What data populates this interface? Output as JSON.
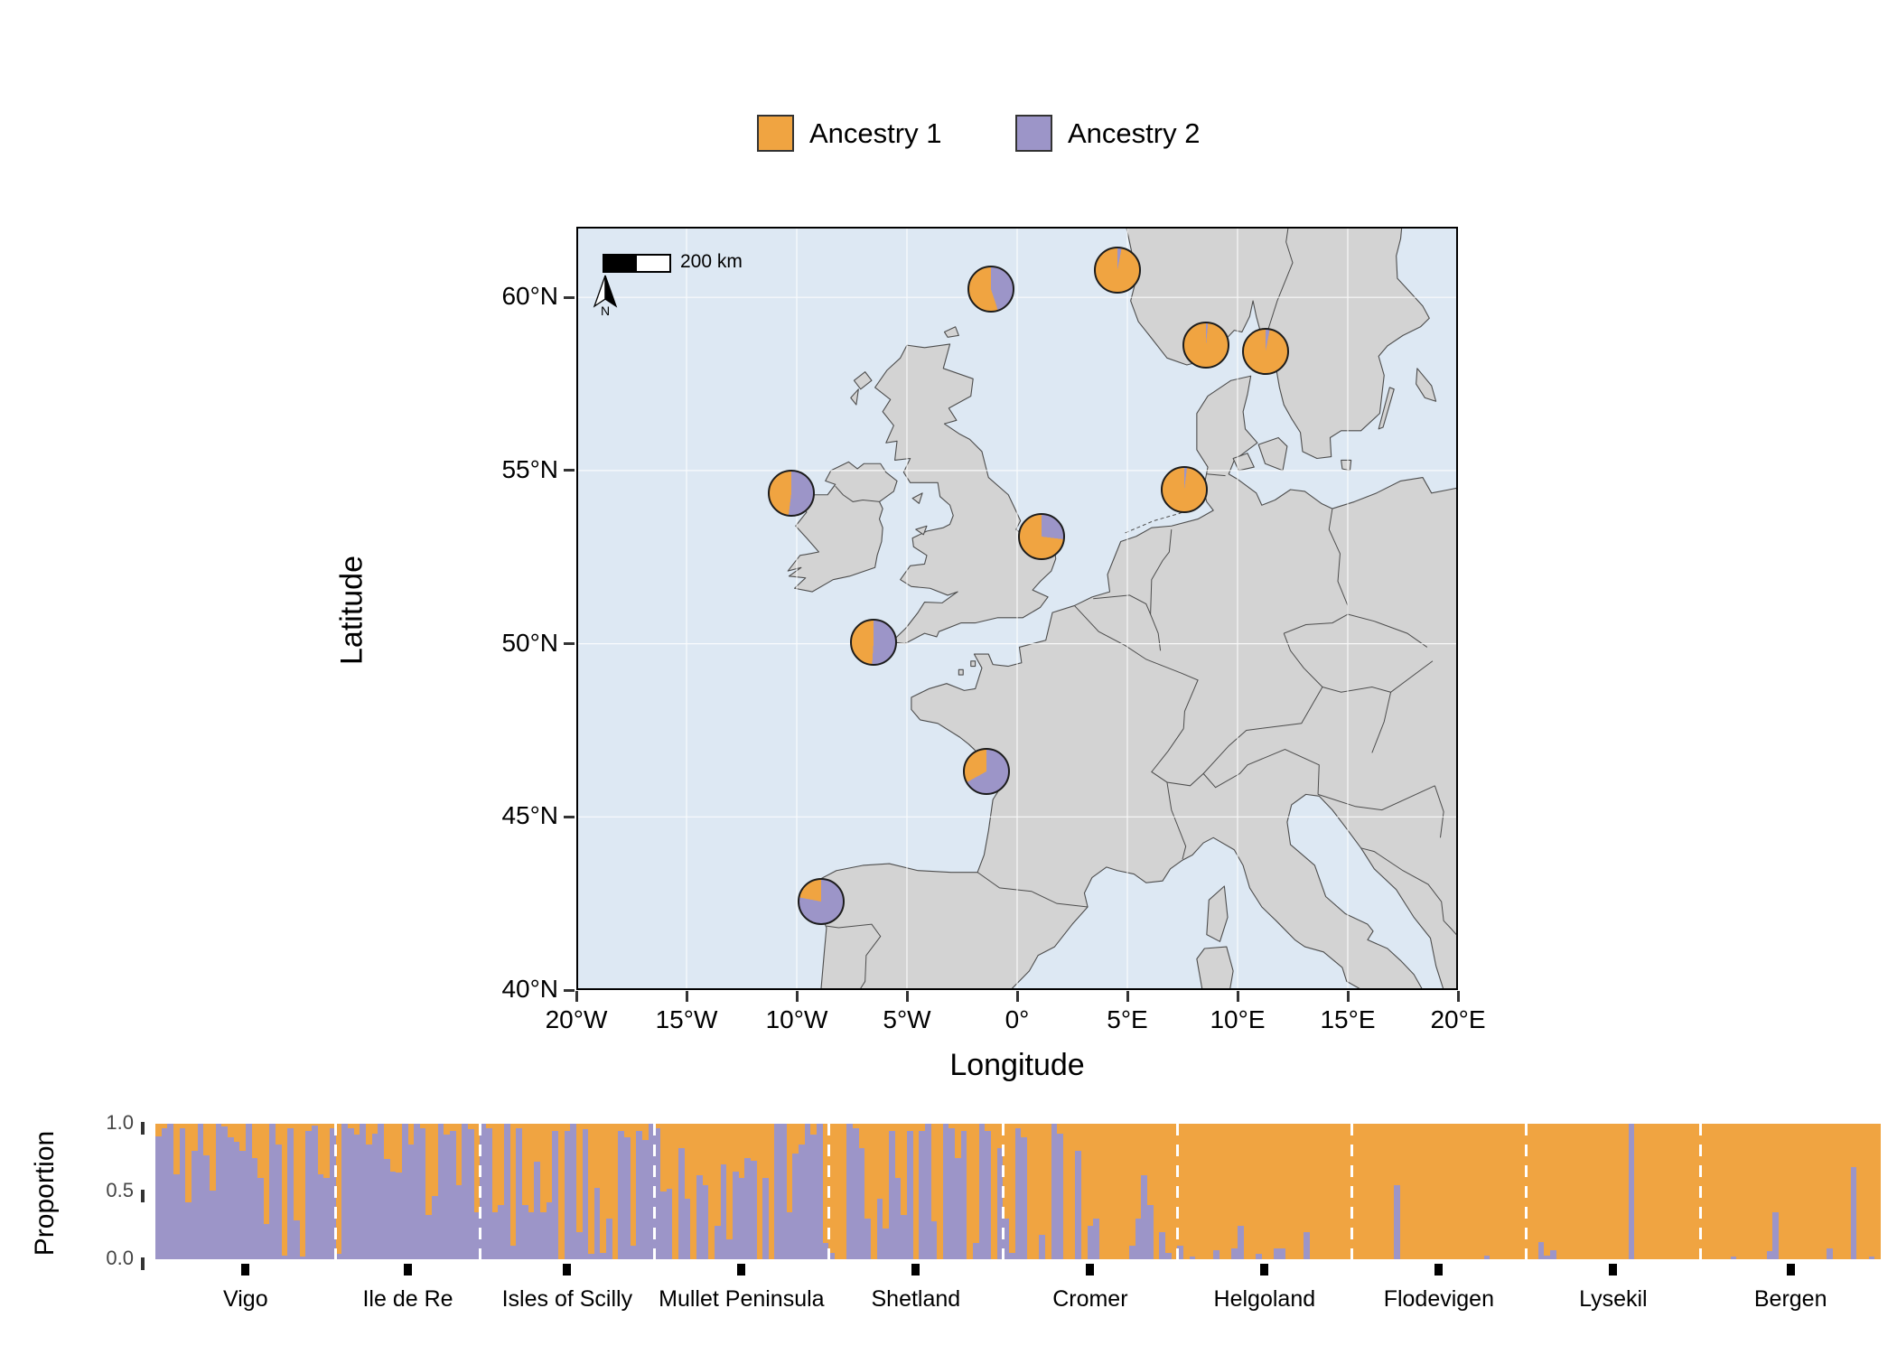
{
  "legend": {
    "items": [
      {
        "label": "Ancestry 1",
        "color": "#F0A441"
      },
      {
        "label": "Ancestry 2",
        "color": "#9C95C8"
      }
    ]
  },
  "map": {
    "xlabel": "Longitude",
    "ylabel": "Latitude",
    "x_ticks": [
      {
        "label": "20°W",
        "lon": -20
      },
      {
        "label": "15°W",
        "lon": -15
      },
      {
        "label": "10°W",
        "lon": -10
      },
      {
        "label": "5°W",
        "lon": -5
      },
      {
        "label": "0°",
        "lon": 0
      },
      {
        "label": "5°E",
        "lon": 5
      },
      {
        "label": "10°E",
        "lon": 10
      },
      {
        "label": "15°E",
        "lon": 15
      },
      {
        "label": "20°E",
        "lon": 20
      }
    ],
    "y_ticks": [
      {
        "label": "60°N",
        "lat": 60
      },
      {
        "label": "55°N",
        "lat": 55
      },
      {
        "label": "50°N",
        "lat": 50
      },
      {
        "label": "45°N",
        "lat": 45
      },
      {
        "label": "40°N",
        "lat": 40
      }
    ],
    "scale_bar": {
      "label": "200 km"
    },
    "north_arrow": {
      "label": "N"
    },
    "colors": {
      "ocean": "#DDE8F3",
      "land": "#D3D3D3",
      "coast": "#4D4D4D",
      "grid": "#FFFFFF"
    }
  },
  "chart_data": [
    {
      "type": "pie",
      "subtype": "map-pies",
      "legend": [
        "Ancestry 1",
        "Ancestry 2"
      ],
      "note": "Pie per sampling site on map; values are [Ancestry1(orange), Ancestry2(purple)] proportions",
      "series": [
        {
          "site": "Shetland",
          "lon": -1.2,
          "lat": 60.25,
          "values": [
            0.55,
            0.45
          ]
        },
        {
          "site": "Bergen",
          "lon": 4.55,
          "lat": 60.8,
          "values": [
            0.97,
            0.03
          ]
        },
        {
          "site": "Flodevigen",
          "lon": 8.55,
          "lat": 58.62,
          "values": [
            0.985,
            0.015
          ]
        },
        {
          "site": "Lysekil",
          "lon": 11.25,
          "lat": 58.45,
          "values": [
            0.97,
            0.03
          ]
        },
        {
          "site": "Mullet Peninsula",
          "lon": -10.25,
          "lat": 54.35,
          "values": [
            0.48,
            0.52
          ]
        },
        {
          "site": "Helgoland",
          "lon": 7.6,
          "lat": 54.45,
          "values": [
            0.98,
            0.02
          ]
        },
        {
          "site": "Cromer",
          "lon": 1.1,
          "lat": 53.1,
          "values": [
            0.73,
            0.27
          ]
        },
        {
          "site": "Isles of Scilly",
          "lon": -6.5,
          "lat": 50.05,
          "values": [
            0.49,
            0.51
          ]
        },
        {
          "site": "Ile de Re",
          "lon": -1.4,
          "lat": 46.3,
          "values": [
            0.33,
            0.67
          ]
        },
        {
          "site": "Vigo",
          "lon": -8.9,
          "lat": 42.55,
          "values": [
            0.22,
            0.78
          ]
        }
      ]
    },
    {
      "type": "bar",
      "subtype": "stacked-admixture",
      "ylabel": "Proportion",
      "ylim": [
        0,
        1
      ],
      "y_tick_labels": [
        "1.0",
        "0.5",
        "0.0"
      ],
      "y_tick_values": [
        1.0,
        0.5,
        0.0
      ],
      "series_names": [
        "Ancestry 1",
        "Ancestry 2"
      ],
      "note": "One stacked bar per individual; value listed is Ancestry 2 (purple, bottom); Ancestry 1 (orange) = 1 - value",
      "categories": [
        "Vigo",
        "Ile de Re",
        "Isles of Scilly",
        "Mullet Peninsula",
        "Shetland",
        "Cromer",
        "Helgoland",
        "Flodevigen",
        "Lysekil",
        "Bergen"
      ],
      "groups": [
        {
          "name": "Vigo",
          "ancestry2": [
            0.91,
            0.97,
            1.0,
            0.63,
            0.97,
            0.42,
            0.8,
            1.0,
            0.77,
            0.51,
            1.0,
            0.98,
            0.9,
            0.87,
            0.8,
            1.0,
            0.75,
            0.6,
            0.26,
            1.0,
            0.85,
            0.03,
            0.97,
            0.29,
            0.02,
            0.95,
            0.99,
            0.63,
            0.6,
            0.97
          ]
        },
        {
          "name": "Ile de Re",
          "ancestry2": [
            0.04,
            1.0,
            0.97,
            0.92,
            1.0,
            0.85,
            0.93,
            1.0,
            0.74,
            0.65,
            0.64,
            1.0,
            0.85,
            1.0,
            0.97,
            0.33,
            0.47,
            1.0,
            0.92,
            0.95,
            0.55,
            1.0,
            0.96,
            0.35
          ]
        },
        {
          "name": "Isles of Scilly",
          "ancestry2": [
            1.0,
            0.97,
            0.35,
            0.4,
            1.0,
            0.1,
            0.97,
            0.4,
            0.35,
            0.72,
            0.35,
            0.42,
            0.95,
            0.0,
            0.95,
            1.0,
            0.2,
            0.96,
            0.04,
            0.53,
            0.05,
            0.3,
            0.0,
            0.95,
            0.9,
            0.1,
            0.95,
            0.88,
            1.0
          ]
        },
        {
          "name": "Mullet Peninsula",
          "ancestry2": [
            0.97,
            0.5,
            0.52,
            0.0,
            0.82,
            0.45,
            0.0,
            0.62,
            0.55,
            0.0,
            0.25,
            0.7,
            0.15,
            0.65,
            0.6,
            0.75,
            0.73,
            0.0,
            0.6,
            0.0,
            1.0,
            1.0,
            0.35,
            0.78,
            0.85,
            1.0,
            0.92,
            1.0,
            0.12
          ]
        },
        {
          "name": "Shetland",
          "ancestry2": [
            0.05,
            0.0,
            0.0,
            1.0,
            0.97,
            0.82,
            0.3,
            0.0,
            0.45,
            0.23,
            0.95,
            0.6,
            0.33,
            0.95,
            0.0,
            0.95,
            1.0,
            0.28,
            0.0,
            1.0,
            0.97,
            0.75,
            0.95,
            0.0,
            0.12,
            1.0,
            0.95,
            0.0,
            0.82
          ]
        },
        {
          "name": "Cromer",
          "ancestry2": [
            0.3,
            0.05,
            0.97,
            0.9,
            0.0,
            0.0,
            0.18,
            0.0,
            1.0,
            0.93,
            0.0,
            0.0,
            0.8,
            0.0,
            0.25,
            0.3,
            0.0,
            0.0,
            0.0,
            0.0,
            0.0,
            0.1,
            0.3,
            0.62,
            0.4,
            0.0,
            0.2,
            0.05,
            0.0
          ]
        },
        {
          "name": "Helgoland",
          "ancestry2": [
            0.1,
            0.0,
            0.02,
            0.0,
            0.0,
            0.0,
            0.07,
            0.0,
            0.0,
            0.08,
            0.25,
            0.0,
            0.0,
            0.04,
            0.0,
            0.0,
            0.08,
            0.08,
            0.0,
            0.0,
            0.0,
            0.2,
            0.0,
            0.0,
            0.0,
            0.0,
            0.0,
            0.0,
            0.0
          ]
        },
        {
          "name": "Flodevigen",
          "ancestry2": [
            0.0,
            0.0,
            0.0,
            0.0,
            0.0,
            0.0,
            0.0,
            0.55,
            0.0,
            0.0,
            0.0,
            0.0,
            0.0,
            0.0,
            0.0,
            0.0,
            0.0,
            0.0,
            0.0,
            0.0,
            0.0,
            0.0,
            0.03,
            0.0,
            0.0,
            0.0,
            0.0,
            0.0,
            0.0
          ]
        },
        {
          "name": "Lysekil",
          "ancestry2": [
            0.0,
            0.0,
            0.13,
            0.03,
            0.07,
            0.0,
            0.0,
            0.0,
            0.0,
            0.0,
            0.0,
            0.0,
            0.0,
            0.0,
            0.0,
            0.0,
            0.0,
            1.0,
            0.0,
            0.0,
            0.0,
            0.0,
            0.0,
            0.0,
            0.0,
            0.0,
            0.0,
            0.0,
            0.0
          ]
        },
        {
          "name": "Bergen",
          "ancestry2": [
            0.0,
            0.0,
            0.0,
            0.0,
            0.0,
            0.02,
            0.0,
            0.0,
            0.0,
            0.0,
            0.0,
            0.06,
            0.35,
            0.0,
            0.0,
            0.0,
            0.0,
            0.0,
            0.0,
            0.0,
            0.0,
            0.08,
            0.0,
            0.0,
            0.0,
            0.68,
            0.0,
            0.0,
            0.02,
            0.0
          ]
        }
      ]
    }
  ]
}
